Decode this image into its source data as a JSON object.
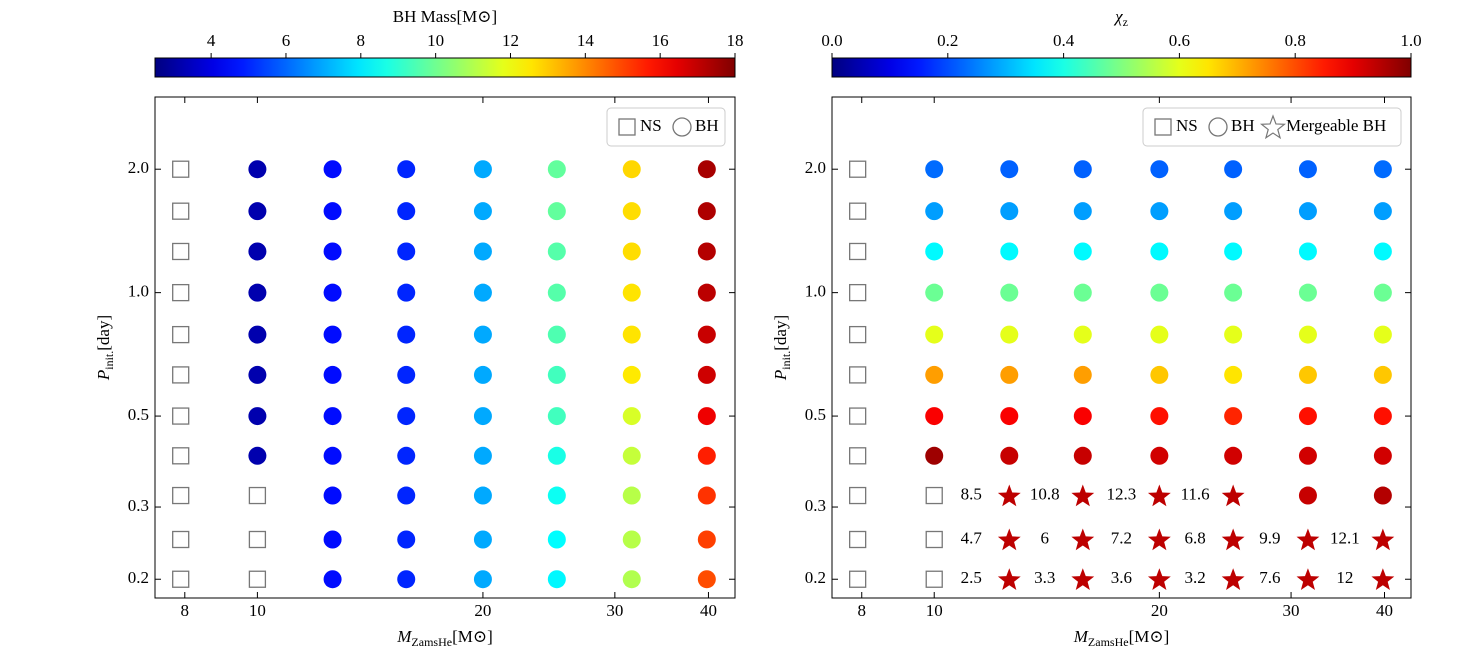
{
  "chart_data": [
    {
      "type": "scatter",
      "log_x": true,
      "log_y": true,
      "cmap": "jet",
      "clabel": "BH Mass[M⊙]",
      "clim": [
        2.5,
        18
      ],
      "cticks": [
        4,
        6,
        8,
        10,
        12,
        14,
        16,
        18
      ],
      "xlabel": "M",
      "xlabel_sub": "ZamsHe",
      "xlabel_unit": "[M⊙]",
      "ylabel": "P",
      "ylabel_sub": "init.",
      "ylabel_unit": "[day]",
      "xlim": [
        7.3,
        43.4
      ],
      "ylim": [
        0.18,
        3.0
      ],
      "xticks": [
        8,
        10,
        20,
        30,
        40
      ],
      "yticks": [
        {
          "value": 2,
          "label": "2.0"
        },
        {
          "value": 1,
          "label": "1.0"
        },
        0.5,
        0.3,
        0.2
      ],
      "legend": [
        "NS",
        "BH"
      ],
      "legend_loc": "upper right",
      "x": [
        7.9,
        10,
        12.6,
        15.8,
        20,
        25.1,
        31.6,
        39.8
      ],
      "y": [
        2.0,
        1.58,
        1.26,
        1.0,
        0.79,
        0.63,
        0.5,
        0.4,
        0.32,
        0.25,
        0.2
      ],
      "kind": [
        [
          0,
          1,
          1,
          1,
          1,
          1,
          1,
          1
        ],
        [
          0,
          1,
          1,
          1,
          1,
          1,
          1,
          1
        ],
        [
          0,
          1,
          1,
          1,
          1,
          1,
          1,
          1
        ],
        [
          0,
          1,
          1,
          1,
          1,
          1,
          1,
          1
        ],
        [
          0,
          1,
          1,
          1,
          1,
          1,
          1,
          1
        ],
        [
          0,
          1,
          1,
          1,
          1,
          1,
          1,
          1
        ],
        [
          0,
          1,
          1,
          1,
          1,
          1,
          1,
          1
        ],
        [
          0,
          1,
          1,
          1,
          1,
          1,
          1,
          1
        ],
        [
          0,
          0,
          1,
          1,
          1,
          1,
          1,
          1
        ],
        [
          0,
          0,
          1,
          1,
          1,
          1,
          1,
          1
        ],
        [
          0,
          0,
          1,
          1,
          1,
          1,
          1,
          1
        ]
      ],
      "values": [
        [
          null,
          3.2,
          4.6,
          5.0,
          7.0,
          9.8,
          12.8,
          17.4
        ],
        [
          null,
          3.2,
          4.6,
          5.0,
          7.0,
          9.8,
          12.7,
          17.3
        ],
        [
          null,
          3.2,
          4.6,
          5.0,
          7.0,
          9.6,
          12.7,
          17.2
        ],
        [
          null,
          3.2,
          4.6,
          5.0,
          7.0,
          9.6,
          12.6,
          17.1
        ],
        [
          null,
          3.2,
          4.6,
          5.0,
          7.0,
          9.5,
          12.6,
          16.9
        ],
        [
          null,
          3.2,
          4.6,
          5.0,
          7.0,
          9.3,
          12.5,
          16.8
        ],
        [
          null,
          3.2,
          4.6,
          5.0,
          7.0,
          9.3,
          11.6,
          16.3
        ],
        [
          null,
          3.2,
          4.6,
          5.0,
          7.0,
          8.7,
          11.3,
          15.6
        ],
        [
          null,
          null,
          4.6,
          5.0,
          7.0,
          8.5,
          11.1,
          15.3
        ],
        [
          null,
          null,
          4.6,
          5.0,
          7.0,
          8.3,
          11.1,
          15.1
        ],
        [
          null,
          null,
          4.6,
          5.0,
          7.0,
          8.2,
          11.0,
          14.9
        ]
      ]
    },
    {
      "type": "scatter",
      "log_x": true,
      "log_y": true,
      "cmap": "jet",
      "clabel": "χ",
      "clabel_sub": "z",
      "clim": [
        0,
        1
      ],
      "cticks": [
        {
          "value": 0,
          "label": "0.0"
        },
        0.2,
        0.4,
        0.6,
        0.8,
        {
          "value": 1,
          "label": "1.0"
        }
      ],
      "xlabel": "M",
      "xlabel_sub": "ZamsHe",
      "xlabel_unit": "[M⊙]",
      "ylabel": "P",
      "ylabel_sub": "init.",
      "ylabel_unit": "[day]",
      "xlim": [
        7.3,
        43.4
      ],
      "ylim": [
        0.18,
        3.0
      ],
      "xticks": [
        8,
        10,
        20,
        30,
        40
      ],
      "yticks": [
        {
          "value": 2,
          "label": "2.0"
        },
        {
          "value": 1,
          "label": "1.0"
        },
        0.5,
        0.3,
        0.2
      ],
      "legend": [
        "NS",
        "BH",
        "Mergeable BH"
      ],
      "legend_loc": "upper right",
      "x": [
        7.9,
        10,
        12.6,
        15.8,
        20,
        25.1,
        31.6,
        39.8
      ],
      "y": [
        2.0,
        1.58,
        1.26,
        1.0,
        0.79,
        0.63,
        0.5,
        0.4,
        0.32,
        0.25,
        0.2
      ],
      "kind": [
        [
          0,
          1,
          1,
          1,
          1,
          1,
          1,
          1
        ],
        [
          0,
          1,
          1,
          1,
          1,
          1,
          1,
          1
        ],
        [
          0,
          1,
          1,
          1,
          1,
          1,
          1,
          1
        ],
        [
          0,
          1,
          1,
          1,
          1,
          1,
          1,
          1
        ],
        [
          0,
          1,
          1,
          1,
          1,
          1,
          1,
          1
        ],
        [
          0,
          1,
          1,
          1,
          1,
          1,
          1,
          1
        ],
        [
          0,
          1,
          1,
          1,
          1,
          1,
          1,
          1
        ],
        [
          0,
          1,
          1,
          1,
          1,
          1,
          1,
          1
        ],
        [
          0,
          0,
          2,
          2,
          2,
          2,
          1,
          1
        ],
        [
          0,
          0,
          2,
          2,
          2,
          2,
          2,
          2
        ],
        [
          0,
          0,
          2,
          2,
          2,
          2,
          2,
          2
        ]
      ],
      "values": [
        [
          null,
          0.23,
          0.22,
          0.22,
          0.22,
          0.22,
          0.22,
          0.23
        ],
        [
          null,
          0.28,
          0.28,
          0.28,
          0.28,
          0.28,
          0.28,
          0.28
        ],
        [
          null,
          0.37,
          0.37,
          0.37,
          0.37,
          0.37,
          0.37,
          0.37
        ],
        [
          null,
          0.48,
          0.48,
          0.48,
          0.48,
          0.48,
          0.48,
          0.48
        ],
        [
          null,
          0.6,
          0.6,
          0.6,
          0.6,
          0.6,
          0.6,
          0.6
        ],
        [
          null,
          0.72,
          0.72,
          0.72,
          0.68,
          0.65,
          0.68,
          0.68
        ],
        [
          null,
          0.88,
          0.88,
          0.88,
          0.86,
          0.84,
          0.86,
          0.86
        ],
        [
          null,
          0.97,
          0.93,
          0.93,
          0.92,
          0.92,
          0.92,
          0.92
        ],
        [
          null,
          null,
          0.94,
          0.94,
          0.94,
          0.94,
          0.93,
          0.95
        ],
        [
          null,
          null,
          0.94,
          0.94,
          0.94,
          0.94,
          0.94,
          0.94
        ],
        [
          null,
          null,
          0.94,
          0.94,
          0.94,
          0.94,
          0.94,
          0.94
        ]
      ],
      "annotations": [
        [
          null,
          null,
          null,
          null,
          null,
          null,
          null,
          null
        ],
        [
          null,
          null,
          null,
          null,
          null,
          null,
          null,
          null
        ],
        [
          null,
          null,
          null,
          null,
          null,
          null,
          null,
          null
        ],
        [
          null,
          null,
          null,
          null,
          null,
          null,
          null,
          null
        ],
        [
          null,
          null,
          null,
          null,
          null,
          null,
          null,
          null
        ],
        [
          null,
          null,
          null,
          null,
          null,
          null,
          null,
          null
        ],
        [
          null,
          null,
          null,
          null,
          null,
          null,
          null,
          null
        ],
        [
          null,
          null,
          null,
          null,
          null,
          null,
          null,
          null
        ],
        [
          null,
          null,
          8.5,
          10.8,
          12.3,
          11.6,
          null,
          null
        ],
        [
          null,
          null,
          4.7,
          6.0,
          7.2,
          6.8,
          9.9,
          12.1
        ],
        [
          null,
          null,
          2.5,
          3.3,
          3.6,
          3.2,
          7.6,
          12.0
        ]
      ]
    }
  ]
}
